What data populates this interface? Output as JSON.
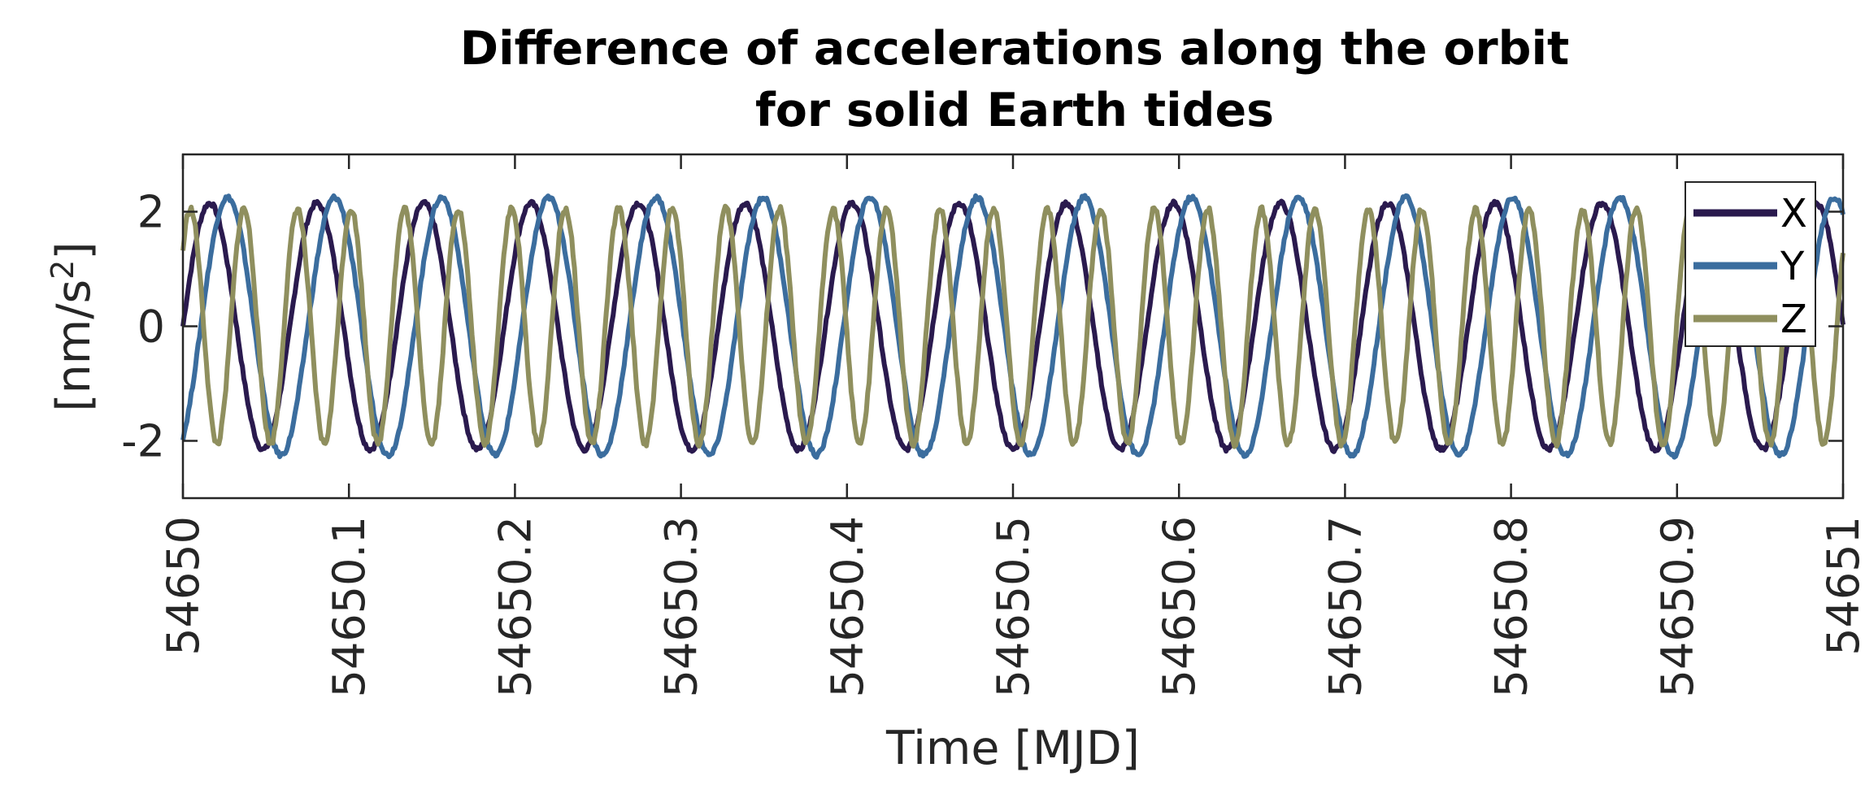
{
  "chart_data": {
    "type": "line",
    "title": [
      "Difference of accelerations along the orbit",
      "for solid Earth tides"
    ],
    "xlabel": "Time [MJD]",
    "ylabel": "[nm/s",
    "ylabel_superscript": "2",
    "ylabel_close": "]",
    "xlim": [
      54650,
      54651
    ],
    "ylim": [
      -3,
      3
    ],
    "xticks": [
      54650,
      54650.1,
      54650.2,
      54650.3,
      54650.4,
      54650.5,
      54650.6,
      54650.7,
      54650.8,
      54650.9,
      54651
    ],
    "xtick_labels": [
      "54650",
      "54650.1",
      "54650.2",
      "54650.3",
      "54650.4",
      "54650.5",
      "54650.6",
      "54650.7",
      "54650.8",
      "54650.9",
      "54651"
    ],
    "yticks": [
      -2,
      0,
      2
    ],
    "ytick_labels": [
      "-2",
      "0",
      "2"
    ],
    "grid": false,
    "legend_position": "top-right",
    "series": [
      {
        "name": "X",
        "color": "#2a1a4e",
        "amplitude": 2.15,
        "cycles": 15.5,
        "phase_deg": 0,
        "noise": 0.08
      },
      {
        "name": "Y",
        "color": "#3b6d9e",
        "amplitude": 2.25,
        "cycles": 15.5,
        "phase_deg": 300,
        "noise": 0.08
      },
      {
        "name": "Z",
        "color": "#8f8f5e",
        "amplitude": 2.05,
        "cycles": 31.0,
        "phase_deg": 40,
        "noise": 0.12
      }
    ]
  }
}
